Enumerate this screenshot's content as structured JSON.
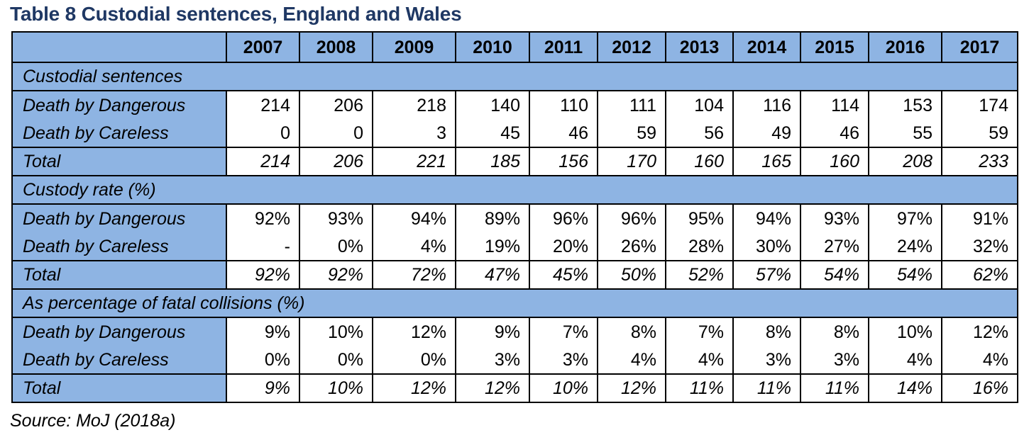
{
  "title": "Table 8 Custodial sentences, England and Wales",
  "header": {
    "corner": "",
    "years": [
      "2007",
      "2008",
      "2009",
      "2010",
      "2011",
      "2012",
      "2013",
      "2014",
      "2015",
      "2016",
      "2017"
    ]
  },
  "sections": [
    {
      "heading": "Custodial sentences",
      "rows": [
        {
          "label": "Death by Dangerous",
          "values": [
            "214",
            "206",
            "218",
            "140",
            "110",
            "111",
            "104",
            "116",
            "114",
            "153",
            "174"
          ]
        },
        {
          "label": "Death by Careless",
          "values": [
            "0",
            "0",
            "3",
            "45",
            "46",
            "59",
            "56",
            "49",
            "46",
            "55",
            "59"
          ]
        }
      ],
      "total": {
        "label": "Total",
        "values": [
          "214",
          "206",
          "221",
          "185",
          "156",
          "170",
          "160",
          "165",
          "160",
          "208",
          "233"
        ]
      }
    },
    {
      "heading": "Custody rate (%)",
      "rows": [
        {
          "label": "Death by Dangerous",
          "values": [
            "92%",
            "93%",
            "94%",
            "89%",
            "96%",
            "96%",
            "95%",
            "94%",
            "93%",
            "97%",
            "91%"
          ]
        },
        {
          "label": "Death by Careless",
          "values": [
            "-",
            "0%",
            "4%",
            "19%",
            "20%",
            "26%",
            "28%",
            "30%",
            "27%",
            "24%",
            "32%"
          ]
        }
      ],
      "total": {
        "label": "Total",
        "values": [
          "92%",
          "92%",
          "72%",
          "47%",
          "45%",
          "50%",
          "52%",
          "57%",
          "54%",
          "54%",
          "62%"
        ]
      }
    },
    {
      "heading": "As percentage of fatal collisions (%)",
      "rows": [
        {
          "label": "Death by Dangerous",
          "values": [
            "9%",
            "10%",
            "12%",
            "9%",
            "7%",
            "8%",
            "7%",
            "8%",
            "8%",
            "10%",
            "12%"
          ]
        },
        {
          "label": "Death by Careless",
          "values": [
            "0%",
            "0%",
            "0%",
            "3%",
            "3%",
            "4%",
            "4%",
            "3%",
            "3%",
            "4%",
            "4%"
          ]
        }
      ],
      "total": {
        "label": "Total",
        "values": [
          "9%",
          "10%",
          "12%",
          "12%",
          "10%",
          "12%",
          "11%",
          "11%",
          "11%",
          "14%",
          "16%"
        ]
      }
    }
  ],
  "source": "Source: MoJ (2018a)",
  "colors": {
    "title": "#1f3864",
    "header_fill": "#8eb4e3",
    "border": "#000000"
  }
}
